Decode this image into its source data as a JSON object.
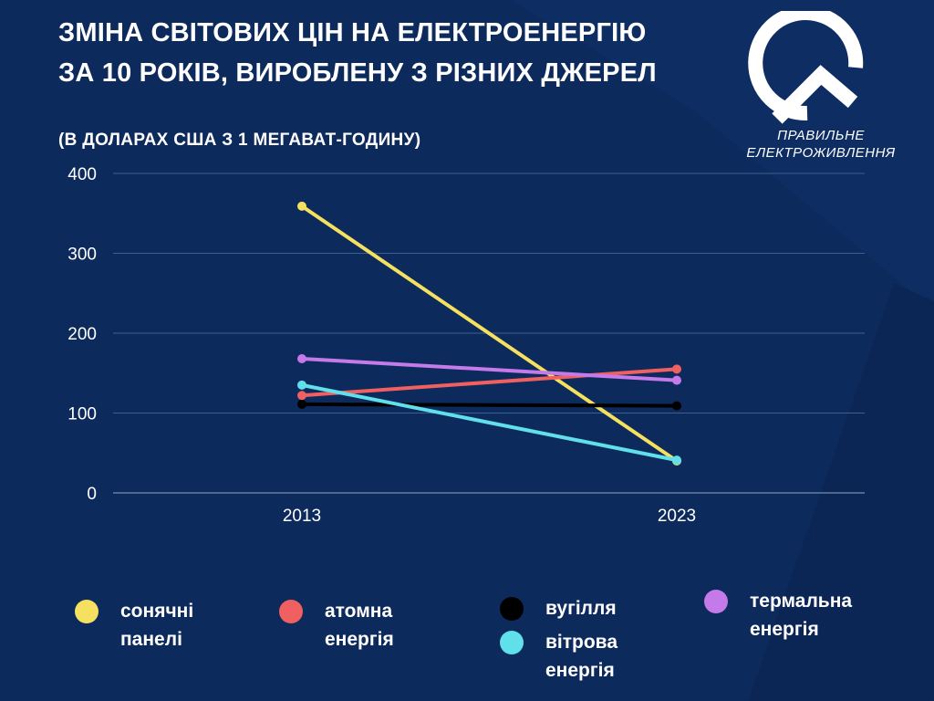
{
  "title_line1": "ЗМІНА СВІТОВИХ ЦІН НА ЕЛЕКТРОЕНЕРГІЮ",
  "title_line2": "ЗА 10 РОКІВ, ВИРОБЛЕНУ З РІЗНИХ ДЖЕРЕЛ",
  "subtitle": "(В ДОЛАРАХ США З 1 МЕГАВАТ-ГОДИНУ)",
  "logo": {
    "line1": "ПРАВИЛЬНЕ",
    "line2": "ЕЛЕКТРОЖИВЛЕННЯ",
    "icon": "brand-logo-icon"
  },
  "colors": {
    "background": "#0d2a5c",
    "grid": "#3d5e92",
    "solar": "#f5e060",
    "nuclear": "#f06060",
    "coal": "#000000",
    "thermal": "#c47ae8",
    "wind": "#5fe0ea"
  },
  "chart_data": {
    "type": "line",
    "x": [
      "2013",
      "2023"
    ],
    "ylim": [
      0,
      400
    ],
    "yticks": [
      "0",
      "100",
      "200",
      "300",
      "400"
    ],
    "grid": true,
    "legend_position": "bottom",
    "series": [
      {
        "key": "solar",
        "name": "сонячні панелі",
        "values": [
          359,
          40
        ]
      },
      {
        "key": "nuclear",
        "name": "атомна енергія",
        "values": [
          122,
          155
        ]
      },
      {
        "key": "coal",
        "name": "вугілля",
        "values": [
          111,
          109
        ]
      },
      {
        "key": "thermal",
        "name": "термальна енергія",
        "values": [
          168,
          141
        ]
      },
      {
        "key": "wind",
        "name": "вітрова енергія",
        "values": [
          135,
          41
        ]
      }
    ]
  },
  "legend": [
    {
      "label": "сонячні панелі",
      "color_key": "solar"
    },
    {
      "label": "атомна енергія",
      "color_key": "nuclear"
    },
    {
      "label": "вугілля",
      "color_key": "coal"
    },
    {
      "label": "вітрова енергія",
      "color_key": "wind"
    },
    {
      "label": "термальна енергія",
      "color_key": "thermal"
    }
  ]
}
